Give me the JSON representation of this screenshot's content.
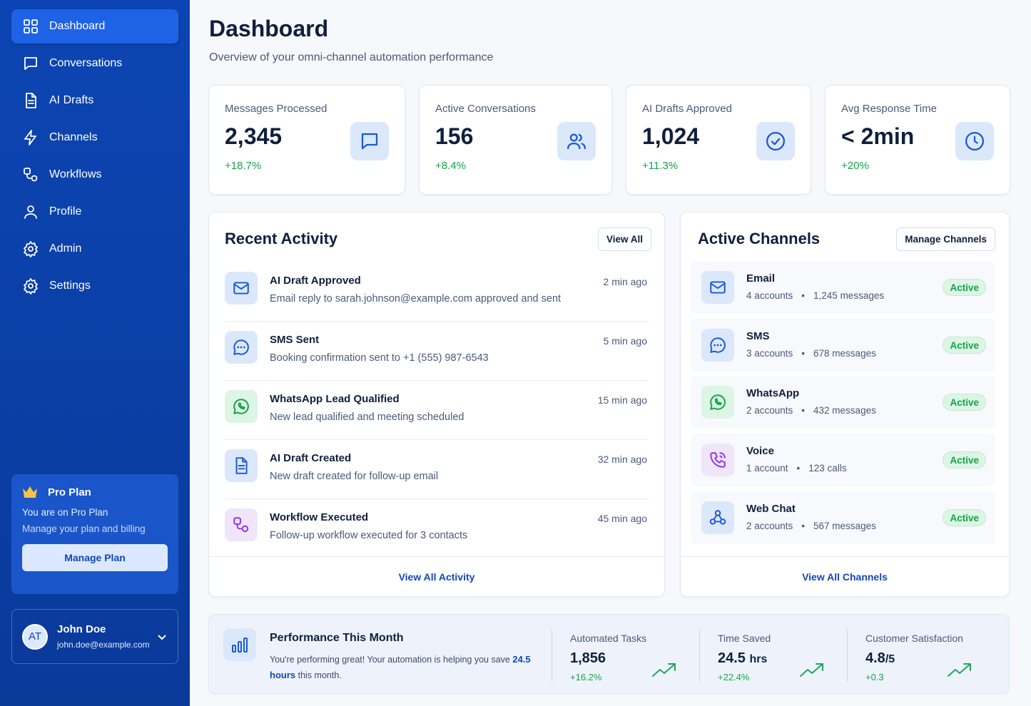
{
  "sidebar": {
    "nav": [
      {
        "label": "Dashboard",
        "icon": "grid-icon",
        "active": true
      },
      {
        "label": "Conversations",
        "icon": "chat-icon"
      },
      {
        "label": "AI Drafts",
        "icon": "document-icon"
      },
      {
        "label": "Channels",
        "icon": "lightning-icon"
      },
      {
        "label": "Workflows",
        "icon": "workflow-icon"
      },
      {
        "label": "Profile",
        "icon": "user-icon"
      },
      {
        "label": "Admin",
        "icon": "gear-icon"
      },
      {
        "label": "Settings",
        "icon": "gear-icon"
      }
    ],
    "plan": {
      "title": "Pro Plan",
      "line1": "You are on Pro Plan",
      "line2": "Manage your plan and billing",
      "button": "Manage Plan"
    },
    "user": {
      "initials": "AT",
      "name": "John Doe",
      "email": "john.doe@example.com"
    }
  },
  "header": {
    "title": "Dashboard",
    "subtitle": "Overview of your omni-channel automation performance"
  },
  "stats": [
    {
      "label": "Messages Processed",
      "value": "2,345",
      "change": "+18.7%",
      "icon": "chat-icon"
    },
    {
      "label": "Active Conversations",
      "value": "156",
      "change": "+8.4%",
      "icon": "users-icon"
    },
    {
      "label": "AI Drafts Approved",
      "value": "1,024",
      "change": "+11.3%",
      "icon": "check-circle-icon"
    },
    {
      "label": "Avg Response Time",
      "value": "< 2min",
      "change": "+20%",
      "icon": "clock-icon"
    }
  ],
  "activity": {
    "title": "Recent Activity",
    "button": "View All",
    "footer": "View All Activity",
    "items": [
      {
        "title": "AI Draft Approved",
        "desc": "Email reply to sarah.johnson@example.com approved and sent",
        "time": "2 min ago",
        "icon": "mail-icon"
      },
      {
        "title": "SMS Sent",
        "desc": "Booking confirmation sent to +1 (555) 987-6543",
        "time": "5 min ago",
        "icon": "sms-icon"
      },
      {
        "title": "WhatsApp Lead Qualified",
        "desc": "New lead qualified and meeting scheduled",
        "time": "15 min ago",
        "icon": "whatsapp-icon"
      },
      {
        "title": "AI Draft Created",
        "desc": "New draft created for follow-up email",
        "time": "32 min ago",
        "icon": "document-icon"
      },
      {
        "title": "Workflow Executed",
        "desc": "Follow-up workflow executed for 3 contacts",
        "time": "45 min ago",
        "icon": "workflow-icon"
      }
    ]
  },
  "channels": {
    "title": "Active Channels",
    "button": "Manage Channels",
    "footer": "View All Channels",
    "items": [
      {
        "name": "Email",
        "accounts": "4 accounts",
        "count": "1,245 messages",
        "status": "Active",
        "icon": "mail-icon"
      },
      {
        "name": "SMS",
        "accounts": "3 accounts",
        "count": "678 messages",
        "status": "Active",
        "icon": "sms-icon"
      },
      {
        "name": "WhatsApp",
        "accounts": "2 accounts",
        "count": "432 messages",
        "status": "Active",
        "icon": "whatsapp-icon"
      },
      {
        "name": "Voice",
        "accounts": "1 account",
        "count": "123 calls",
        "status": "Active",
        "icon": "phone-icon"
      },
      {
        "name": "Web Chat",
        "accounts": "2 accounts",
        "count": "567 messages",
        "status": "Active",
        "icon": "webhook-icon"
      }
    ]
  },
  "performance": {
    "title": "Performance This Month",
    "text_before": "You're performing great! Your automation is helping you save",
    "highlight": "24.5 hours",
    "text_after": "this month.",
    "metrics": [
      {
        "label": "Automated Tasks",
        "value": "1,856",
        "unit": "",
        "change": "+16.2%"
      },
      {
        "label": "Time Saved",
        "value": "24.5",
        "unit": "hrs",
        "change": "+22.4%"
      },
      {
        "label": "Customer Satisfaction",
        "value": "4.8",
        "unit": "/5",
        "change": "+0.3"
      }
    ]
  },
  "colors": {
    "sidebar": "#0c45b3",
    "accent": "#1c57d6",
    "positive": "#16a34a"
  }
}
